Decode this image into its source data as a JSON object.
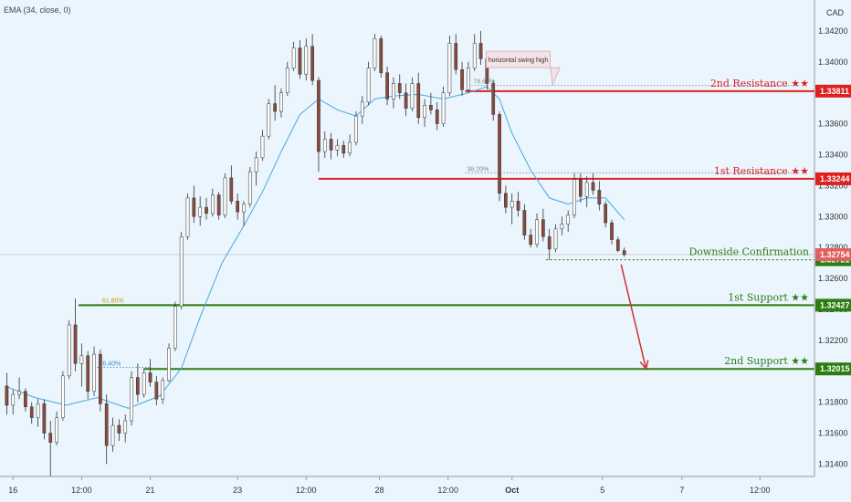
{
  "indicator_label": "EMA (34, close, 0)",
  "currency": "CAD",
  "colors": {
    "background": "#eaf5fd",
    "up": "#ffffff",
    "down": "#8b4a3c",
    "wick": "#333333",
    "ema": "#4aa7dd",
    "resistance": "#e02020",
    "support": "#2e7d12",
    "fib_resistance": "#888888",
    "fib_support_orange": "#c9a000",
    "fib_support_blue": "#3a8fd0",
    "current_price": "#e06060",
    "arrow": "#d03030",
    "axis": "#999999"
  },
  "chart_data": {
    "type": "candlestick",
    "y_ticks": [
      "1.34200",
      "1.34000",
      "1.33800",
      "1.33600",
      "1.33400",
      "1.33200",
      "1.33000",
      "1.32800",
      "1.32600",
      "1.32400",
      "1.32200",
      "1.32000",
      "1.31800",
      "1.31600",
      "1.31400"
    ],
    "ylim": [
      1.3132,
      1.344
    ],
    "x_ticks": [
      "16",
      "12:00",
      "21",
      "23",
      "12:00",
      "28",
      "12:00",
      "Oct",
      "5",
      "7",
      "12:00"
    ],
    "x_ticks_bold": [
      false,
      false,
      false,
      false,
      false,
      false,
      false,
      true,
      false,
      false,
      false
    ],
    "x_tick_pos": [
      0.6,
      5,
      9.4,
      15,
      19.4,
      24.1,
      28.5,
      32.6,
      38.4,
      43.5,
      48.5
    ],
    "xlim": [
      0,
      52
    ],
    "last_price": 1.32754,
    "price_levels": [
      {
        "name": "2nd Resistance ★★",
        "price": 1.33811,
        "price_label": "1.33811",
        "kind": "resistance",
        "x_start": 29.6
      },
      {
        "name": "1st Resistance ★★",
        "price": 1.33244,
        "price_label": "1.33244",
        "kind": "resistance",
        "x_start": 20.2
      },
      {
        "name": "Downside Confirmation",
        "price": 1.32721,
        "price_label": "1.32721",
        "kind": "confirmation",
        "x_start": 34.8
      },
      {
        "name": "1st Support ★★",
        "price": 1.32427,
        "price_label": "1.32427",
        "kind": "support",
        "x_start": 4.8
      },
      {
        "name": "2nd Support ★★",
        "price": 1.32015,
        "price_label": "1.32015",
        "kind": "support",
        "x_start": 9.0
      }
    ],
    "fib_levels": [
      {
        "label": "78.60%",
        "price": 1.33847,
        "x_start": 30.0,
        "x_end": 51,
        "color_key": "fib_resistance"
      },
      {
        "label": "38.20%",
        "price": 1.33283,
        "x_start": 29.6,
        "x_end": 51,
        "color_key": "fib_resistance"
      },
      {
        "label": "61.80%",
        "price": 1.32432,
        "x_start": 6.2,
        "x_end": 51,
        "color_key": "fib_support_orange"
      },
      {
        "label": "76.40%",
        "price": 1.32025,
        "x_start": 6.0,
        "x_end": 9.5,
        "color_key": "fib_support_blue"
      }
    ],
    "callout": {
      "text": "horizontal swing high",
      "x": 33,
      "y": 1.3401,
      "pointer_x": 35.2,
      "pointer_y": 1.3385
    },
    "arrow": {
      "x1": 39.6,
      "y1": 1.3269,
      "x2": 41.2,
      "y2": 1.32015
    },
    "candles": [
      {
        "t": 0.2,
        "o": 1.31905,
        "h": 1.3199,
        "l": 1.3172,
        "c": 1.3178
      },
      {
        "t": 0.6,
        "o": 1.3178,
        "h": 1.3188,
        "l": 1.3172,
        "c": 1.3185
      },
      {
        "t": 1.0,
        "o": 1.3185,
        "h": 1.3196,
        "l": 1.3182,
        "c": 1.3187
      },
      {
        "t": 1.4,
        "o": 1.3187,
        "h": 1.3189,
        "l": 1.3174,
        "c": 1.3177
      },
      {
        "t": 1.8,
        "o": 1.3177,
        "h": 1.318,
        "l": 1.3166,
        "c": 1.317
      },
      {
        "t": 2.2,
        "o": 1.317,
        "h": 1.3182,
        "l": 1.3164,
        "c": 1.3179
      },
      {
        "t": 2.6,
        "o": 1.3179,
        "h": 1.3182,
        "l": 1.3156,
        "c": 1.316
      },
      {
        "t": 3.0,
        "o": 1.316,
        "h": 1.3168,
        "l": 1.313,
        "c": 1.3154
      },
      {
        "t": 3.4,
        "o": 1.3154,
        "h": 1.3174,
        "l": 1.3152,
        "c": 1.317
      },
      {
        "t": 3.8,
        "o": 1.317,
        "h": 1.32,
        "l": 1.3168,
        "c": 1.3197
      },
      {
        "t": 4.2,
        "o": 1.3197,
        "h": 1.3233,
        "l": 1.3195,
        "c": 1.323
      },
      {
        "t": 4.6,
        "o": 1.323,
        "h": 1.3247,
        "l": 1.32,
        "c": 1.3205
      },
      {
        "t": 5.0,
        "o": 1.3205,
        "h": 1.3218,
        "l": 1.319,
        "c": 1.321
      },
      {
        "t": 5.4,
        "o": 1.321,
        "h": 1.3213,
        "l": 1.3182,
        "c": 1.3187
      },
      {
        "t": 5.8,
        "o": 1.3187,
        "h": 1.3216,
        "l": 1.3184,
        "c": 1.3211
      },
      {
        "t": 6.2,
        "o": 1.3211,
        "h": 1.3214,
        "l": 1.3174,
        "c": 1.3179
      },
      {
        "t": 6.6,
        "o": 1.3179,
        "h": 1.3185,
        "l": 1.314,
        "c": 1.3152
      },
      {
        "t": 7.0,
        "o": 1.3152,
        "h": 1.317,
        "l": 1.3148,
        "c": 1.3165
      },
      {
        "t": 7.4,
        "o": 1.3165,
        "h": 1.3169,
        "l": 1.3155,
        "c": 1.316
      },
      {
        "t": 7.8,
        "o": 1.316,
        "h": 1.3172,
        "l": 1.3154,
        "c": 1.3168
      },
      {
        "t": 8.2,
        "o": 1.3168,
        "h": 1.32,
        "l": 1.3165,
        "c": 1.3196
      },
      {
        "t": 8.6,
        "o": 1.3196,
        "h": 1.3205,
        "l": 1.318,
        "c": 1.3185
      },
      {
        "t": 9.0,
        "o": 1.3185,
        "h": 1.3202,
        "l": 1.3183,
        "c": 1.3199
      },
      {
        "t": 9.4,
        "o": 1.3199,
        "h": 1.3208,
        "l": 1.319,
        "c": 1.3193
      },
      {
        "t": 9.8,
        "o": 1.3193,
        "h": 1.3197,
        "l": 1.3178,
        "c": 1.3182
      },
      {
        "t": 10.2,
        "o": 1.3182,
        "h": 1.3196,
        "l": 1.3179,
        "c": 1.3194
      },
      {
        "t": 10.6,
        "o": 1.3194,
        "h": 1.3218,
        "l": 1.3193,
        "c": 1.3215
      },
      {
        "t": 11.0,
        "o": 1.3215,
        "h": 1.3245,
        "l": 1.3213,
        "c": 1.3242
      },
      {
        "t": 11.4,
        "o": 1.3242,
        "h": 1.329,
        "l": 1.324,
        "c": 1.3287
      },
      {
        "t": 11.8,
        "o": 1.3287,
        "h": 1.3315,
        "l": 1.3285,
        "c": 1.3312
      },
      {
        "t": 12.2,
        "o": 1.3312,
        "h": 1.332,
        "l": 1.3296,
        "c": 1.33
      },
      {
        "t": 12.6,
        "o": 1.33,
        "h": 1.3313,
        "l": 1.3294,
        "c": 1.3306
      },
      {
        "t": 13.0,
        "o": 1.3306,
        "h": 1.3312,
        "l": 1.3298,
        "c": 1.3302
      },
      {
        "t": 13.4,
        "o": 1.3302,
        "h": 1.3318,
        "l": 1.33,
        "c": 1.3314
      },
      {
        "t": 13.8,
        "o": 1.3314,
        "h": 1.3316,
        "l": 1.3298,
        "c": 1.3301
      },
      {
        "t": 14.2,
        "o": 1.3301,
        "h": 1.3328,
        "l": 1.3299,
        "c": 1.3325
      },
      {
        "t": 14.6,
        "o": 1.3325,
        "h": 1.3333,
        "l": 1.3308,
        "c": 1.331
      },
      {
        "t": 15.0,
        "o": 1.331,
        "h": 1.3315,
        "l": 1.3298,
        "c": 1.3303
      },
      {
        "t": 15.4,
        "o": 1.3303,
        "h": 1.331,
        "l": 1.3294,
        "c": 1.3308
      },
      {
        "t": 15.8,
        "o": 1.3308,
        "h": 1.3332,
        "l": 1.3306,
        "c": 1.3329
      },
      {
        "t": 16.2,
        "o": 1.3329,
        "h": 1.3342,
        "l": 1.332,
        "c": 1.3338
      },
      {
        "t": 16.6,
        "o": 1.3338,
        "h": 1.3356,
        "l": 1.3336,
        "c": 1.3352
      },
      {
        "t": 17.0,
        "o": 1.3352,
        "h": 1.3376,
        "l": 1.335,
        "c": 1.3373
      },
      {
        "t": 17.4,
        "o": 1.3373,
        "h": 1.3385,
        "l": 1.3362,
        "c": 1.3368
      },
      {
        "t": 17.8,
        "o": 1.3368,
        "h": 1.3383,
        "l": 1.3364,
        "c": 1.338
      },
      {
        "t": 18.2,
        "o": 1.338,
        "h": 1.34,
        "l": 1.3378,
        "c": 1.3396
      },
      {
        "t": 18.6,
        "o": 1.3396,
        "h": 1.3413,
        "l": 1.3394,
        "c": 1.3409
      },
      {
        "t": 19.0,
        "o": 1.3409,
        "h": 1.3414,
        "l": 1.3389,
        "c": 1.3392
      },
      {
        "t": 19.4,
        "o": 1.3392,
        "h": 1.3415,
        "l": 1.3388,
        "c": 1.341
      },
      {
        "t": 19.8,
        "o": 1.341,
        "h": 1.3418,
        "l": 1.3385,
        "c": 1.3388
      },
      {
        "t": 20.2,
        "o": 1.3388,
        "h": 1.339,
        "l": 1.3329,
        "c": 1.3342
      },
      {
        "t": 20.6,
        "o": 1.3342,
        "h": 1.3355,
        "l": 1.3338,
        "c": 1.335
      },
      {
        "t": 21.0,
        "o": 1.335,
        "h": 1.3354,
        "l": 1.3337,
        "c": 1.3343
      },
      {
        "t": 21.4,
        "o": 1.3343,
        "h": 1.335,
        "l": 1.3339,
        "c": 1.3346
      },
      {
        "t": 21.8,
        "o": 1.3346,
        "h": 1.3349,
        "l": 1.3338,
        "c": 1.3341
      },
      {
        "t": 22.2,
        "o": 1.3341,
        "h": 1.3353,
        "l": 1.3339,
        "c": 1.3348
      },
      {
        "t": 22.6,
        "o": 1.3348,
        "h": 1.3368,
        "l": 1.3346,
        "c": 1.3365
      },
      {
        "t": 23.0,
        "o": 1.3365,
        "h": 1.3378,
        "l": 1.336,
        "c": 1.3374
      },
      {
        "t": 23.4,
        "o": 1.3374,
        "h": 1.34,
        "l": 1.3372,
        "c": 1.3396
      },
      {
        "t": 23.8,
        "o": 1.3396,
        "h": 1.3418,
        "l": 1.3394,
        "c": 1.3415
      },
      {
        "t": 24.2,
        "o": 1.3415,
        "h": 1.3417,
        "l": 1.339,
        "c": 1.3393
      },
      {
        "t": 24.6,
        "o": 1.3393,
        "h": 1.3397,
        "l": 1.3372,
        "c": 1.3376
      },
      {
        "t": 25.0,
        "o": 1.3376,
        "h": 1.339,
        "l": 1.337,
        "c": 1.3386
      },
      {
        "t": 25.4,
        "o": 1.3386,
        "h": 1.3392,
        "l": 1.3376,
        "c": 1.338
      },
      {
        "t": 25.8,
        "o": 1.338,
        "h": 1.3386,
        "l": 1.3365,
        "c": 1.337
      },
      {
        "t": 26.2,
        "o": 1.337,
        "h": 1.339,
        "l": 1.3368,
        "c": 1.3386
      },
      {
        "t": 26.6,
        "o": 1.3386,
        "h": 1.3393,
        "l": 1.336,
        "c": 1.3364
      },
      {
        "t": 27.0,
        "o": 1.3364,
        "h": 1.3376,
        "l": 1.3358,
        "c": 1.3372
      },
      {
        "t": 27.4,
        "o": 1.3372,
        "h": 1.338,
        "l": 1.3366,
        "c": 1.3369
      },
      {
        "t": 27.8,
        "o": 1.3369,
        "h": 1.3374,
        "l": 1.3356,
        "c": 1.336
      },
      {
        "t": 28.2,
        "o": 1.336,
        "h": 1.3384,
        "l": 1.3358,
        "c": 1.338
      },
      {
        "t": 28.6,
        "o": 1.338,
        "h": 1.3417,
        "l": 1.3378,
        "c": 1.3412
      },
      {
        "t": 29.0,
        "o": 1.3412,
        "h": 1.3418,
        "l": 1.3392,
        "c": 1.3395
      },
      {
        "t": 29.4,
        "o": 1.3395,
        "h": 1.34,
        "l": 1.3378,
        "c": 1.3382
      },
      {
        "t": 29.8,
        "o": 1.3382,
        "h": 1.34,
        "l": 1.338,
        "c": 1.3396
      },
      {
        "t": 30.2,
        "o": 1.3396,
        "h": 1.3418,
        "l": 1.3394,
        "c": 1.3412
      },
      {
        "t": 30.6,
        "o": 1.3412,
        "h": 1.342,
        "l": 1.3398,
        "c": 1.3402
      },
      {
        "t": 31.0,
        "o": 1.3402,
        "h": 1.3406,
        "l": 1.3382,
        "c": 1.3386
      },
      {
        "t": 31.4,
        "o": 1.3386,
        "h": 1.3388,
        "l": 1.3362,
        "c": 1.3366
      },
      {
        "t": 31.8,
        "o": 1.3366,
        "h": 1.3368,
        "l": 1.331,
        "c": 1.3315
      },
      {
        "t": 32.2,
        "o": 1.3315,
        "h": 1.332,
        "l": 1.3302,
        "c": 1.3306
      },
      {
        "t": 32.6,
        "o": 1.3306,
        "h": 1.3315,
        "l": 1.3295,
        "c": 1.331
      },
      {
        "t": 33.0,
        "o": 1.331,
        "h": 1.3316,
        "l": 1.33,
        "c": 1.3304
      },
      {
        "t": 33.4,
        "o": 1.3304,
        "h": 1.3308,
        "l": 1.3285,
        "c": 1.3288
      },
      {
        "t": 33.8,
        "o": 1.3288,
        "h": 1.3292,
        "l": 1.328,
        "c": 1.3282
      },
      {
        "t": 34.2,
        "o": 1.3282,
        "h": 1.3302,
        "l": 1.328,
        "c": 1.3298
      },
      {
        "t": 34.6,
        "o": 1.3298,
        "h": 1.3305,
        "l": 1.3284,
        "c": 1.3287
      },
      {
        "t": 35.0,
        "o": 1.3287,
        "h": 1.3292,
        "l": 1.3272,
        "c": 1.3279
      },
      {
        "t": 35.4,
        "o": 1.3279,
        "h": 1.3295,
        "l": 1.3277,
        "c": 1.3292
      },
      {
        "t": 35.8,
        "o": 1.3292,
        "h": 1.33,
        "l": 1.3288,
        "c": 1.3295
      },
      {
        "t": 36.2,
        "o": 1.3295,
        "h": 1.3304,
        "l": 1.329,
        "c": 1.3301
      },
      {
        "t": 36.6,
        "o": 1.3301,
        "h": 1.3328,
        "l": 1.3299,
        "c": 1.3324
      },
      {
        "t": 37.0,
        "o": 1.3324,
        "h": 1.3328,
        "l": 1.3309,
        "c": 1.3313
      },
      {
        "t": 37.4,
        "o": 1.3313,
        "h": 1.3326,
        "l": 1.3306,
        "c": 1.3322
      },
      {
        "t": 37.8,
        "o": 1.3322,
        "h": 1.3328,
        "l": 1.3314,
        "c": 1.3317
      },
      {
        "t": 38.2,
        "o": 1.3317,
        "h": 1.3323,
        "l": 1.3304,
        "c": 1.3308
      },
      {
        "t": 38.6,
        "o": 1.3308,
        "h": 1.331,
        "l": 1.3293,
        "c": 1.3296
      },
      {
        "t": 39.0,
        "o": 1.3296,
        "h": 1.3298,
        "l": 1.3282,
        "c": 1.3285
      },
      {
        "t": 39.4,
        "o": 1.3285,
        "h": 1.3287,
        "l": 1.3277,
        "c": 1.3278
      },
      {
        "t": 39.8,
        "o": 1.3278,
        "h": 1.328,
        "l": 1.3274,
        "c": 1.32754
      }
    ],
    "ema": [
      [
        0.2,
        1.319
      ],
      [
        2.0,
        1.3183
      ],
      [
        4.0,
        1.3178
      ],
      [
        6.0,
        1.3183
      ],
      [
        8.0,
        1.3176
      ],
      [
        10.0,
        1.3184
      ],
      [
        11.4,
        1.3202
      ],
      [
        12.6,
        1.3235
      ],
      [
        14.0,
        1.327
      ],
      [
        15.4,
        1.3294
      ],
      [
        16.6,
        1.3316
      ],
      [
        17.8,
        1.3342
      ],
      [
        19.0,
        1.3366
      ],
      [
        20.2,
        1.3376
      ],
      [
        21.4,
        1.3369
      ],
      [
        22.6,
        1.3365
      ],
      [
        23.8,
        1.3376
      ],
      [
        25.0,
        1.3378
      ],
      [
        26.6,
        1.3379
      ],
      [
        28.2,
        1.3376
      ],
      [
        29.8,
        1.338
      ],
      [
        31.0,
        1.3384
      ],
      [
        31.8,
        1.3376
      ],
      [
        32.6,
        1.3354
      ],
      [
        33.8,
        1.333
      ],
      [
        35.0,
        1.3312
      ],
      [
        36.2,
        1.3308
      ],
      [
        37.4,
        1.3312
      ],
      [
        38.6,
        1.3312
      ],
      [
        39.8,
        1.3298
      ]
    ]
  }
}
